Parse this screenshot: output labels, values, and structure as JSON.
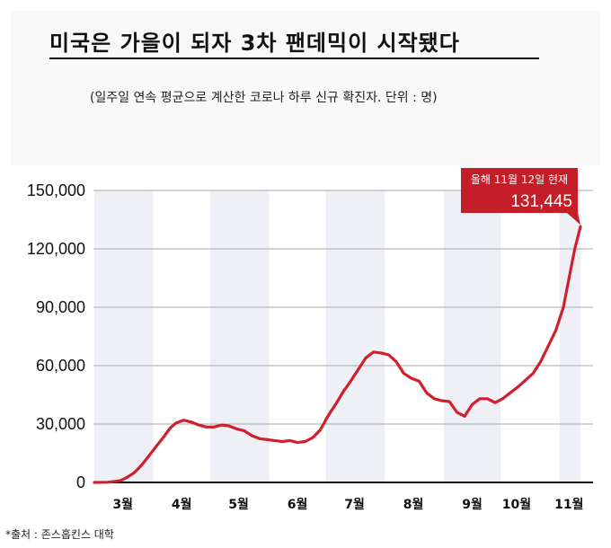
{
  "title": "미국은 가을이 되자 3차 팬데믹이 시작됐다",
  "subtitle": "(일주일 연속 평균으로 계산한 코로나 하루 신규 확진자. 단위 :  명)",
  "source": "*출처 :  존스홉킨스 대학",
  "colors": {
    "line": "#d0202e",
    "band": "#eef0f6",
    "callout": "#c41e29",
    "header_bg": "#f9f9f9"
  },
  "chart_data": {
    "type": "line",
    "title": "미국은 가을이 되자 3차 팬데믹이 시작됐다",
    "xlabel": "",
    "ylabel": "",
    "ylim": [
      0,
      150000
    ],
    "yticks": [
      0,
      30000,
      60000,
      90000,
      120000,
      150000
    ],
    "ytick_labels": [
      "0",
      "30,000",
      "60,000",
      "90,000",
      "120,000",
      "150,000"
    ],
    "xtick_labels": [
      "3월",
      "4월",
      "5월",
      "6월",
      "7월",
      "8월",
      "9월",
      "10월",
      "11월"
    ],
    "grid": false,
    "series": [
      {
        "x": [
          "2020-03-01",
          "2020-03-08",
          "2020-03-12",
          "2020-03-15",
          "2020-03-18",
          "2020-03-22",
          "2020-03-26",
          "2020-03-30",
          "2020-04-03",
          "2020-04-07",
          "2020-04-10",
          "2020-04-13",
          "2020-04-17",
          "2020-04-21",
          "2020-04-25",
          "2020-04-29",
          "2020-05-03",
          "2020-05-07",
          "2020-05-11",
          "2020-05-15",
          "2020-05-19",
          "2020-05-23",
          "2020-05-27",
          "2020-05-31",
          "2020-06-04",
          "2020-06-08",
          "2020-06-12",
          "2020-06-16",
          "2020-06-20",
          "2020-06-24",
          "2020-06-28",
          "2020-07-02",
          "2020-07-06",
          "2020-07-10",
          "2020-07-14",
          "2020-07-18",
          "2020-07-22",
          "2020-07-26",
          "2020-07-30",
          "2020-08-03",
          "2020-08-07",
          "2020-08-11",
          "2020-08-15",
          "2020-08-19",
          "2020-08-23",
          "2020-08-27",
          "2020-08-31",
          "2020-09-04",
          "2020-09-08",
          "2020-09-12",
          "2020-09-16",
          "2020-09-20",
          "2020-09-24",
          "2020-09-28",
          "2020-10-02",
          "2020-10-06",
          "2020-10-10",
          "2020-10-14",
          "2020-10-18",
          "2020-10-22",
          "2020-10-26",
          "2020-10-30",
          "2020-11-03",
          "2020-11-06",
          "2020-11-09",
          "2020-11-12"
        ],
        "values": [
          0,
          100,
          500,
          1000,
          2500,
          5000,
          9000,
          14000,
          19000,
          24000,
          28000,
          30500,
          32000,
          31000,
          29500,
          28500,
          28500,
          29500,
          29000,
          27500,
          26500,
          24000,
          22500,
          22000,
          21500,
          21000,
          21500,
          20500,
          21000,
          23000,
          27000,
          34000,
          40000,
          46500,
          52000,
          58000,
          64000,
          67000,
          66500,
          65500,
          62000,
          56000,
          53500,
          52000,
          46000,
          43000,
          42000,
          41500,
          36000,
          34000,
          40000,
          43000,
          43000,
          41000,
          43000,
          46000,
          49000,
          52500,
          56000,
          62000,
          70000,
          78000,
          90000,
          105000,
          120000,
          131445
        ]
      }
    ],
    "annotations": [
      {
        "label": "올해 11월 12일 현재",
        "value_label": "131,445"
      }
    ]
  }
}
